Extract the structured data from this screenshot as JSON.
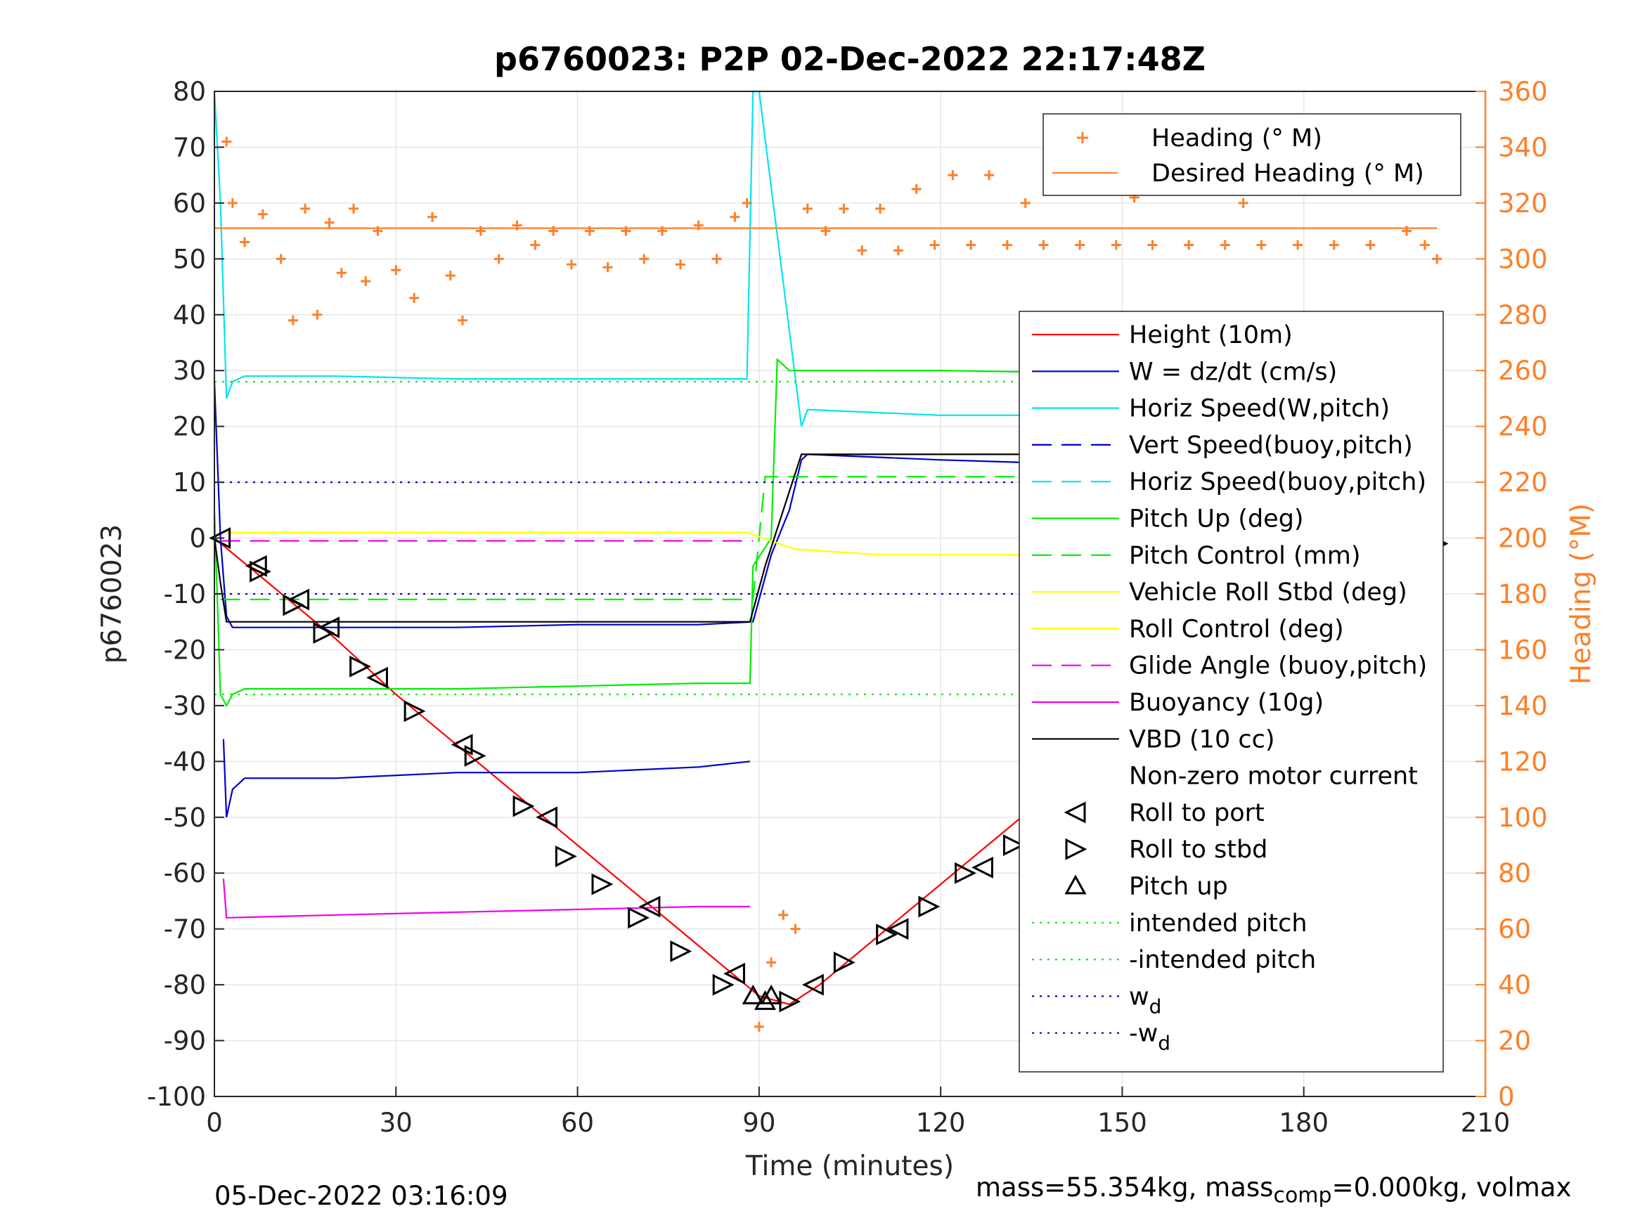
{
  "chart_data": {
    "type": "line",
    "title": "p6760023: P2P 02-Dec-2022 22:17:48Z",
    "xlabel": "Time (minutes)",
    "ylabel": "p6760023",
    "y2label": "Heading (°M)",
    "xlim": [
      0,
      210
    ],
    "ylim": [
      -100,
      80
    ],
    "y2lim": [
      0,
      360
    ],
    "xticks": [
      0,
      30,
      60,
      90,
      120,
      150,
      180,
      210
    ],
    "yticks": [
      -100,
      -90,
      -80,
      -70,
      -60,
      -50,
      -40,
      -30,
      -20,
      -10,
      0,
      10,
      20,
      30,
      40,
      50,
      60,
      70,
      80
    ],
    "y2ticks": [
      0,
      20,
      40,
      60,
      80,
      100,
      120,
      140,
      160,
      180,
      200,
      220,
      240,
      260,
      280,
      300,
      320,
      340,
      360
    ],
    "grid": true,
    "legend_right": [
      {
        "label": "Height (10m)",
        "color": "#ff0000",
        "style": "solid"
      },
      {
        "label": "W = dz/dt (cm/s)",
        "color": "#0000cc",
        "style": "solid"
      },
      {
        "label": "Horiz Speed(W,pitch)",
        "color": "#00e5ee",
        "style": "solid"
      },
      {
        "label": "Vert Speed(buoy,pitch)",
        "color": "#0000cc",
        "style": "dashed"
      },
      {
        "label": "Horiz Speed(buoy,pitch)",
        "color": "#00e5ee",
        "style": "dashed"
      },
      {
        "label": "Pitch Up (deg)",
        "color": "#00ee00",
        "style": "solid"
      },
      {
        "label": "Pitch Control (mm)",
        "color": "#00ee00",
        "style": "dashed"
      },
      {
        "label": "Vehicle Roll Stbd (deg)",
        "color": "#ffff00",
        "style": "solid"
      },
      {
        "label": "Roll Control (deg)",
        "color": "#ffff00",
        "style": "solid"
      },
      {
        "label": "Glide Angle (buoy,pitch)",
        "color": "#ee00ee",
        "style": "dashed"
      },
      {
        "label": "Buoyancy (10g)",
        "color": "#ee00ee",
        "style": "solid"
      },
      {
        "label": "VBD (10 cc)",
        "color": "#000000",
        "style": "solid"
      },
      {
        "label": "Non-zero motor current",
        "color": "#000000",
        "style": "none"
      },
      {
        "label": "Roll to port",
        "color": "#000000",
        "style": "marker-left"
      },
      {
        "label": "Roll to stbd",
        "color": "#000000",
        "style": "marker-right"
      },
      {
        "label": "Pitch up",
        "color": "#000000",
        "style": "marker-up"
      },
      {
        "label": "intended pitch",
        "color": "#00ee00",
        "style": "dotted"
      },
      {
        "label": "-intended pitch",
        "color": "#00ee00",
        "style": "dotted"
      },
      {
        "label": "w",
        "sub": "d",
        "color": "#0000cc",
        "style": "dotted"
      },
      {
        "label": "-w",
        "sub": "d",
        "color": "#0000cc",
        "style": "dotted"
      }
    ],
    "legend_heading": [
      {
        "label": "Heading (° M)",
        "color": "#ff7f27",
        "style": "plus"
      },
      {
        "label": "Desired Heading (° M)",
        "color": "#ff7f27",
        "style": "solid"
      }
    ],
    "series": [
      {
        "name": "Height (10m)",
        "x": [
          0,
          10,
          20,
          30,
          40,
          50,
          60,
          70,
          80,
          90,
          95,
          100,
          110,
          120,
          130,
          140,
          150,
          160,
          170,
          180,
          190,
          200,
          202
        ],
        "y": [
          0,
          -9,
          -18,
          -28,
          -37,
          -46,
          -55,
          -64,
          -73,
          -82,
          -83.5,
          -80,
          -71,
          -62,
          -53,
          -44,
          -35,
          -27,
          -19,
          -12,
          -6,
          -2,
          -1.5
        ]
      },
      {
        "name": "W = dz/dt (cm/s)",
        "x": [
          0,
          1,
          2,
          3,
          5,
          20,
          40,
          60,
          80,
          89,
          92,
          95,
          97,
          98,
          120,
          150,
          180,
          202
        ],
        "y": [
          28,
          0,
          -14,
          -16,
          -16,
          -16,
          -16,
          -15.5,
          -15.5,
          -15,
          -3,
          5,
          14,
          15,
          14,
          13,
          12,
          12
        ]
      },
      {
        "name": "Horiz Speed(W,pitch)",
        "x": [
          0,
          1,
          2,
          3,
          5,
          20,
          40,
          60,
          80,
          88,
          89,
          90,
          97,
          98,
          120,
          150,
          180,
          202
        ],
        "y": [
          80,
          60,
          25,
          28,
          29,
          29,
          28.5,
          28.5,
          28.5,
          28.5,
          80,
          80,
          20,
          23,
          22,
          22,
          21,
          21
        ]
      },
      {
        "name": "Pitch Up (deg)",
        "x": [
          0,
          1,
          2,
          3,
          5,
          20,
          40,
          60,
          80,
          88.5,
          89,
          92,
          93,
          94,
          95,
          120,
          150,
          180,
          202
        ],
        "y": [
          5,
          -28,
          -30,
          -28,
          -27,
          -27,
          -27,
          -26.5,
          -26,
          -26,
          -5,
          0,
          32,
          31,
          30,
          30,
          29.5,
          29,
          28.5
        ]
      },
      {
        "name": "Pitch Control (mm)",
        "x": [
          1,
          89,
          91,
          202
        ],
        "y": [
          -11,
          -11,
          11,
          11
        ]
      },
      {
        "name": "Vehicle Roll Stbd (deg)",
        "x": [
          2,
          10,
          20,
          30,
          40,
          50,
          60,
          70,
          80,
          88,
          96,
          110,
          130,
          150,
          170,
          190,
          202
        ],
        "y": [
          1,
          1,
          1,
          1,
          1,
          1,
          1,
          1,
          1,
          1,
          -2,
          -3,
          -3,
          -3,
          -3,
          -3,
          -3
        ]
      },
      {
        "name": "Glide Angle (buoy,pitch)",
        "x": [
          1,
          89
        ],
        "y": [
          -0.5,
          -0.5
        ]
      },
      {
        "name": "Buoyancy (10g)",
        "x": [
          1.5,
          2,
          20,
          40,
          60,
          80,
          88.5
        ],
        "y": [
          -61,
          -68,
          -67.5,
          -67,
          -66.5,
          -66,
          -66
        ]
      },
      {
        "name": "VBD (10 cc)",
        "x": [
          0,
          1,
          2,
          88.5,
          91,
          94,
          97,
          202
        ],
        "y": [
          0,
          -8,
          -15,
          -15,
          -5,
          5,
          15,
          15
        ]
      },
      {
        "name": "W = dz/dt (cm/s) climb noise",
        "x": [
          1.5,
          2,
          3,
          5,
          10,
          20,
          40,
          60,
          80,
          88.5
        ],
        "y": [
          -36,
          -50,
          -45,
          -43,
          -43,
          -43,
          -42,
          -42,
          -41,
          -40
        ]
      },
      {
        "name": "intended pitch",
        "x": [
          0,
          202
        ],
        "y": [
          28,
          28
        ]
      },
      {
        "name": "-intended pitch",
        "x": [
          0,
          202
        ],
        "y": [
          -28,
          -28
        ]
      },
      {
        "name": "wd",
        "x": [
          0,
          202
        ],
        "y": [
          10,
          10
        ]
      },
      {
        "name": "-wd",
        "x": [
          0,
          202
        ],
        "y": [
          -10,
          -10
        ]
      },
      {
        "name": "Heading (° M)",
        "axis": "right",
        "x": [
          2,
          3,
          5,
          8,
          11,
          13,
          15,
          17,
          19,
          21,
          23,
          25,
          27,
          30,
          33,
          36,
          39,
          41,
          44,
          47,
          50,
          53,
          56,
          59,
          62,
          65,
          68,
          71,
          74,
          77,
          80,
          83,
          86,
          88,
          90,
          92,
          94,
          96,
          98,
          101,
          104,
          107,
          110,
          113,
          116,
          119,
          122,
          125,
          128,
          131,
          134,
          137,
          140,
          143,
          146,
          149,
          152,
          155,
          158,
          161,
          164,
          167,
          170,
          173,
          176,
          179,
          182,
          185,
          188,
          191,
          194,
          197,
          200,
          202
        ],
        "y": [
          342,
          320,
          306,
          316,
          300,
          278,
          318,
          280,
          313,
          295,
          318,
          292,
          310,
          296,
          286,
          315,
          294,
          278,
          310,
          300,
          312,
          305,
          310,
          298,
          310,
          297,
          310,
          300,
          310,
          298,
          312,
          300,
          315,
          320,
          25,
          48,
          65,
          60,
          318,
          310,
          318,
          303,
          318,
          303,
          325,
          305,
          330,
          305,
          330,
          305,
          320,
          305,
          325,
          305,
          325,
          305,
          322,
          305,
          325,
          305,
          330,
          305,
          320,
          305,
          330,
          305,
          335,
          305,
          335,
          305,
          345,
          310,
          305,
          300
        ]
      },
      {
        "name": "Desired Heading (° M)",
        "axis": "right",
        "x": [
          0,
          92,
          98,
          202
        ],
        "y": [
          311,
          311,
          311,
          311
        ]
      },
      {
        "name": "Roll to port",
        "marker": "left",
        "x": [
          1,
          7,
          14,
          19,
          27,
          41,
          55,
          72,
          86,
          99,
          113,
          127,
          141,
          155,
          169,
          183,
          195
        ],
        "y": [
          0,
          -5,
          -11,
          -16,
          -25,
          -37,
          -50,
          -66,
          -78,
          -80,
          -70,
          -59,
          -48,
          -38,
          -28,
          -19,
          -10
        ]
      },
      {
        "name": "Roll to stbd",
        "marker": "right",
        "x": [
          7.5,
          13,
          18,
          24,
          33,
          43,
          51,
          58,
          64,
          70,
          77,
          84,
          95,
          104,
          111,
          118,
          124,
          132,
          139,
          146,
          152,
          160,
          166,
          173,
          178,
          185,
          191,
          197,
          202
        ],
        "y": [
          -6,
          -12,
          -17,
          -23,
          -31,
          -39,
          -48,
          -57,
          -62,
          -68,
          -74,
          -80,
          -83,
          -76,
          -71,
          -66,
          -60,
          -55,
          -50,
          -43,
          -38,
          -32,
          -28,
          -23,
          -17,
          -14,
          -9,
          -4,
          -1
        ]
      },
      {
        "name": "Pitch up",
        "marker": "up",
        "x": [
          89,
          91,
          92
        ],
        "y": [
          -82,
          -83,
          -82
        ]
      }
    ]
  },
  "footer": {
    "timestamp": "05-Dec-2022 03:16:09",
    "mass_prefix": "mass=55.354kg, mass",
    "mass_sub": "comp",
    "mass_suffix": "=0.000kg, volmax"
  }
}
